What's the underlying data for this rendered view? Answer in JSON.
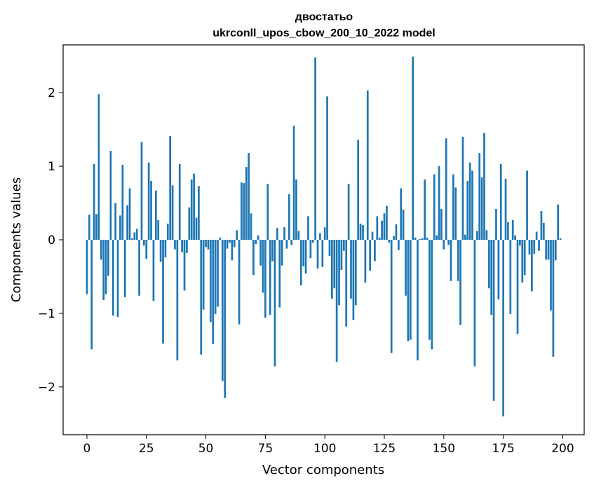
{
  "chart_data": {
    "type": "bar",
    "title": "двостатьо",
    "subtitle": "ukrconll_upos_cbow_200_10_2022 model",
    "xlabel": "Vector components",
    "ylabel": "Components values",
    "xlim": [
      -10,
      209
    ],
    "ylim": [
      -2.65,
      2.65
    ],
    "xticks": [
      0,
      25,
      50,
      75,
      100,
      125,
      150,
      175,
      200
    ],
    "xtick_labels": [
      "0",
      "25",
      "50",
      "75",
      "100",
      "125",
      "150",
      "175",
      "200"
    ],
    "yticks": [
      -2,
      -1,
      0,
      1,
      2
    ],
    "ytick_labels": [
      "−2",
      "−1",
      "0",
      "1",
      "2"
    ],
    "grid": false,
    "bar_color": "#1f77b4",
    "values": [
      -0.74,
      0.34,
      -1.49,
      1.03,
      0.35,
      1.98,
      -0.27,
      -0.82,
      -0.74,
      -0.49,
      1.21,
      -1.03,
      0.5,
      -1.05,
      0.33,
      1.02,
      -0.78,
      0.47,
      0.7,
      0.02,
      0.1,
      0.15,
      -0.76,
      1.33,
      -0.08,
      -0.26,
      1.05,
      0.8,
      -0.83,
      0.67,
      0.27,
      -0.3,
      -1.41,
      -0.24,
      0.22,
      1.41,
      0.74,
      -0.13,
      -1.64,
      1.03,
      -0.17,
      -0.69,
      -0.18,
      0.44,
      0.82,
      0.9,
      0.3,
      0.73,
      -1.56,
      -0.95,
      -0.1,
      -0.13,
      -1.12,
      -1.42,
      -1.01,
      -0.91,
      0.03,
      -1.92,
      -2.15,
      -0.12,
      -0.04,
      -0.28,
      -0.1,
      0.13,
      -1.15,
      0.78,
      0.77,
      0.99,
      1.18,
      0.36,
      -0.48,
      -0.06,
      0.06,
      -0.35,
      -0.72,
      -1.06,
      0.76,
      -1.02,
      -0.29,
      -1.72,
      0.16,
      -0.92,
      -0.35,
      0.17,
      -0.12,
      0.62,
      -0.07,
      1.55,
      0.82,
      0.12,
      -0.62,
      -0.36,
      -0.46,
      0.32,
      -0.25,
      -0.04,
      2.48,
      -0.39,
      0.09,
      -0.37,
      0.17,
      1.95,
      -0.22,
      -0.8,
      -0.66,
      -1.66,
      -0.89,
      -0.41,
      -0.15,
      -1.18,
      0.76,
      -0.8,
      -1.09,
      -0.89,
      1.36,
      0.22,
      0.2,
      -0.58,
      2.03,
      -0.42,
      0.11,
      -0.29,
      0.32,
      0.03,
      0.26,
      0.36,
      0.46,
      -0.04,
      -1.54,
      0.05,
      0.21,
      -0.14,
      0.7,
      0.41,
      -0.76,
      -1.38,
      -1.36,
      2.49,
      0.03,
      -1.64,
      0.01,
      0.02,
      0.82,
      0.03,
      -1.36,
      -1.49,
      0.89,
      0.06,
      1.0,
      0.42,
      -0.13,
      1.38,
      -0.07,
      -0.56,
      0.89,
      0.71,
      -0.56,
      -1.16,
      1.4,
      0.07,
      0.8,
      1.05,
      0.94,
      -1.72,
      0.12,
      1.18,
      0.85,
      1.45,
      0.13,
      -0.66,
      -1.02,
      -2.19,
      0.42,
      -0.81,
      1.03,
      -2.4,
      0.83,
      0.24,
      -1.01,
      0.27,
      0.06,
      -1.28,
      -0.08,
      -0.58,
      -0.48,
      0.94,
      -0.2,
      -0.7,
      -0.19,
      0.11,
      -0.15,
      0.39,
      0.23,
      -0.27,
      -0.27,
      -0.96,
      -1.59,
      -0.28,
      0.48,
      0.02
    ]
  }
}
